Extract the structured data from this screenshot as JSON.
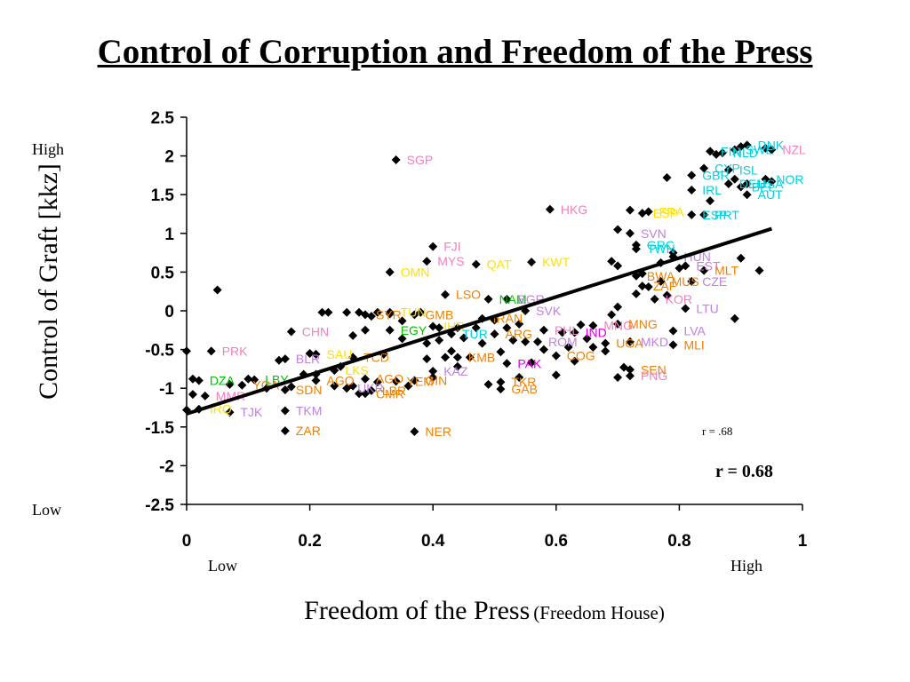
{
  "chart_data": {
    "type": "scatter",
    "title": "Control of Corruption and Freedom of the Press",
    "xlabel": "Freedom of the Press",
    "xlabel_sub": "(Freedom House)",
    "ylabel": "Control of Graft [kkz]",
    "x_low_label": "Low",
    "x_high_label": "High",
    "y_low_label": "Low",
    "y_high_label": "High",
    "xlim": [
      0,
      1
    ],
    "ylim": [
      -2.5,
      2.5
    ],
    "xticks": [
      "0",
      "0.2",
      "0.4",
      "0.6",
      "0.8",
      "1"
    ],
    "yticks": [
      "2.5",
      "2",
      "1.5",
      "1",
      "0.5",
      "0",
      "-0.5",
      "-1",
      "-1.5",
      "-2",
      "-2.5"
    ],
    "annotation": "r = 0.68",
    "annotation_small": "r =  .68",
    "trendline": {
      "x": [
        0.0,
        0.95
      ],
      "y": [
        -1.33,
        1.06
      ]
    },
    "points": [
      {
        "x": 0.34,
        "y": 1.95,
        "label": "SGP",
        "color": "#f080c0"
      },
      {
        "x": 0.59,
        "y": 1.31,
        "label": "HKG",
        "color": "#f080c0"
      },
      {
        "x": 0.4,
        "y": 0.83,
        "label": "FJI",
        "color": "#f080c0"
      },
      {
        "x": 0.39,
        "y": 0.64,
        "label": "MYS",
        "color": "#f080c0"
      },
      {
        "x": 0.33,
        "y": 0.5,
        "label": "OMN",
        "color": "#ffe000"
      },
      {
        "x": 0.47,
        "y": 0.6,
        "label": "QAT",
        "color": "#ffe000"
      },
      {
        "x": 0.56,
        "y": 0.63,
        "label": "KWT",
        "color": "#ffe000"
      },
      {
        "x": 0.42,
        "y": 0.21,
        "label": "LSO",
        "color": "#f08000"
      },
      {
        "x": 0.49,
        "y": 0.15,
        "label": "NAM",
        "color": "#00c000"
      },
      {
        "x": 0.52,
        "y": 0.15,
        "label": "BGR",
        "color": "#c080e0"
      },
      {
        "x": 0.55,
        "y": 0.0,
        "label": "SVK",
        "color": "#c080e0"
      },
      {
        "x": 0.17,
        "y": -0.27,
        "label": "CHN",
        "color": "#f080c0"
      },
      {
        "x": 0.33,
        "y": -0.25,
        "label": "EGY",
        "color": "#00c000"
      },
      {
        "x": 0.4,
        "y": -0.2,
        "label": "IHR",
        "color": "#ffe000"
      },
      {
        "x": 0.37,
        "y": -0.05,
        "label": "GMB",
        "color": "#f08000"
      },
      {
        "x": 0.33,
        "y": -0.02,
        "label": "TUN",
        "color": "#ffe000"
      },
      {
        "x": 0.29,
        "y": -0.05,
        "label": "SYR",
        "color": "#f08000"
      },
      {
        "x": 0.43,
        "y": -0.3,
        "label": "TUR",
        "color": "#00d0e0"
      },
      {
        "x": 0.48,
        "y": -0.1,
        "label": "IRAN",
        "color": "#f08000"
      },
      {
        "x": 0.5,
        "y": -0.3,
        "label": "ARG",
        "color": "#f08000"
      },
      {
        "x": 0.58,
        "y": -0.25,
        "label": "PHL",
        "color": "#f080c0"
      },
      {
        "x": 0.57,
        "y": -0.4,
        "label": "ROM",
        "color": "#c080e0"
      },
      {
        "x": 0.63,
        "y": -0.28,
        "label": "IND",
        "color": "#e000e0"
      },
      {
        "x": 0.66,
        "y": -0.19,
        "label": "MNG",
        "color": "#f080c0"
      },
      {
        "x": 0.7,
        "y": -0.17,
        "label": "MNG",
        "color": "#f08000"
      },
      {
        "x": 0.68,
        "y": -0.42,
        "label": "UGA",
        "color": "#f08000"
      },
      {
        "x": 0.72,
        "y": -0.4,
        "label": "MKD",
        "color": "#c080e0"
      },
      {
        "x": 0.79,
        "y": -0.44,
        "label": "MLI",
        "color": "#f08000"
      },
      {
        "x": 0.6,
        "y": -0.58,
        "label": "COG",
        "color": "#f08000"
      },
      {
        "x": 0.52,
        "y": -0.68,
        "label": "PAK",
        "color": "#e000e0"
      },
      {
        "x": 0.44,
        "y": -0.6,
        "label": "KMB",
        "color": "#f08000"
      },
      {
        "x": 0.04,
        "y": -0.52,
        "label": "PRK",
        "color": "#f080c0"
      },
      {
        "x": 0.16,
        "y": -0.62,
        "label": "BLR",
        "color": "#c080e0"
      },
      {
        "x": 0.21,
        "y": -0.56,
        "label": "SAU",
        "color": "#ffe000"
      },
      {
        "x": 0.27,
        "y": -0.6,
        "label": "TCD",
        "color": "#f08000"
      },
      {
        "x": 0.24,
        "y": -0.77,
        "label": "LKS",
        "color": "#ffe000"
      },
      {
        "x": 0.02,
        "y": -0.9,
        "label": "DZA",
        "color": "#00c000"
      },
      {
        "x": 0.11,
        "y": -0.89,
        "label": "LBY",
        "color": "#00c000"
      },
      {
        "x": 0.09,
        "y": -0.96,
        "label": "YGA",
        "color": "#f08000"
      },
      {
        "x": 0.21,
        "y": -0.9,
        "label": "AGO",
        "color": "#f08000"
      },
      {
        "x": 0.29,
        "y": -0.88,
        "label": "AGO",
        "color": "#f08000"
      },
      {
        "x": 0.34,
        "y": -0.91,
        "label": "YEM",
        "color": "#f08000"
      },
      {
        "x": 0.37,
        "y": -0.9,
        "label": "GIN",
        "color": "#f08000"
      },
      {
        "x": 0.4,
        "y": -0.78,
        "label": "KAZ",
        "color": "#c080e0"
      },
      {
        "x": 0.26,
        "y": -1.0,
        "label": "UKR",
        "color": "#c080e0"
      },
      {
        "x": 0.29,
        "y": -1.07,
        "label": "CMR",
        "color": "#f08000"
      },
      {
        "x": 0.3,
        "y": -1.03,
        "label": "LBR",
        "color": "#f08000"
      },
      {
        "x": 0.16,
        "y": -1.02,
        "label": "SDN",
        "color": "#f08000"
      },
      {
        "x": 0.03,
        "y": -1.1,
        "label": "MMR",
        "color": "#f080c0"
      },
      {
        "x": 0.02,
        "y": -1.27,
        "label": "IRQ",
        "color": "#ffe000"
      },
      {
        "x": 0.07,
        "y": -1.31,
        "label": "TJK",
        "color": "#c080e0"
      },
      {
        "x": 0.16,
        "y": -1.29,
        "label": "TKM",
        "color": "#c080e0"
      },
      {
        "x": 0.16,
        "y": -1.55,
        "label": "ZAR",
        "color": "#f08000"
      },
      {
        "x": 0.37,
        "y": -1.56,
        "label": "NER",
        "color": "#f08000"
      },
      {
        "x": 0.51,
        "y": -0.92,
        "label": "TKR",
        "color": "#f08000"
      },
      {
        "x": 0.51,
        "y": -1.01,
        "label": "GAB",
        "color": "#f08000"
      },
      {
        "x": 0.72,
        "y": -0.76,
        "label": "SEN",
        "color": "#f08000"
      },
      {
        "x": 0.72,
        "y": -0.84,
        "label": "PNG",
        "color": "#f080c0"
      },
      {
        "x": 0.72,
        "y": 1.0,
        "label": "SVN",
        "color": "#c080e0"
      },
      {
        "x": 0.73,
        "y": 0.85,
        "label": "GRC",
        "color": "#00d0e0"
      },
      {
        "x": 0.73,
        "y": 0.8,
        "label": "TWN",
        "color": "#00d0e0"
      },
      {
        "x": 0.79,
        "y": 0.7,
        "label": "HUN",
        "color": "#c080e0"
      },
      {
        "x": 0.81,
        "y": 0.58,
        "label": "EST",
        "color": "#c080e0"
      },
      {
        "x": 0.84,
        "y": 0.52,
        "label": "MLT",
        "color": "#f08000"
      },
      {
        "x": 0.73,
        "y": 0.45,
        "label": "BWA",
        "color": "#f08000"
      },
      {
        "x": 0.74,
        "y": 0.32,
        "label": "ZAF",
        "color": "#f08000"
      },
      {
        "x": 0.77,
        "y": 0.38,
        "label": "MUS",
        "color": "#f08000"
      },
      {
        "x": 0.82,
        "y": 0.38,
        "label": "CZE",
        "color": "#c080e0"
      },
      {
        "x": 0.76,
        "y": 0.15,
        "label": "KOR",
        "color": "#f080c0"
      },
      {
        "x": 0.81,
        "y": 0.03,
        "label": "LTU",
        "color": "#c080e0"
      },
      {
        "x": 0.79,
        "y": -0.26,
        "label": "LVA",
        "color": "#c080e0"
      },
      {
        "x": 0.74,
        "y": 1.26,
        "label": "ESP",
        "color": "#ffe000"
      },
      {
        "x": 0.75,
        "y": 1.28,
        "label": "FRA",
        "color": "#ffe000"
      },
      {
        "x": 0.82,
        "y": 1.24,
        "label": "ESP",
        "color": "#00d0e0"
      },
      {
        "x": 0.84,
        "y": 1.24,
        "label": "PRT",
        "color": "#00d0e0"
      },
      {
        "x": 0.82,
        "y": 1.56,
        "label": "IRL",
        "color": "#00d0e0"
      },
      {
        "x": 0.82,
        "y": 1.75,
        "label": "GBR",
        "color": "#00d0e0"
      },
      {
        "x": 0.84,
        "y": 1.84,
        "label": "CYP",
        "color": "#00d0e0"
      },
      {
        "x": 0.88,
        "y": 1.82,
        "label": "ISL",
        "color": "#00d0e0"
      },
      {
        "x": 0.88,
        "y": 1.64,
        "label": "DEU",
        "color": "#00d0e0"
      },
      {
        "x": 0.9,
        "y": 1.6,
        "label": "BEL",
        "color": "#00d0e0"
      },
      {
        "x": 0.91,
        "y": 1.64,
        "label": "USA",
        "color": "#00d0e0"
      },
      {
        "x": 0.91,
        "y": 1.5,
        "label": "AUT",
        "color": "#00d0e0"
      },
      {
        "x": 0.94,
        "y": 1.7,
        "label": "NOR",
        "color": "#00d0e0"
      },
      {
        "x": 0.85,
        "y": 2.06,
        "label": "FIN",
        "color": "#00d0e0"
      },
      {
        "x": 0.87,
        "y": 2.04,
        "label": "NLD",
        "color": "#00d0e0"
      },
      {
        "x": 0.89,
        "y": 2.08,
        "label": "SWE",
        "color": "#00d0e0"
      },
      {
        "x": 0.91,
        "y": 2.14,
        "label": "DNK",
        "color": "#00d0e0"
      },
      {
        "x": 0.95,
        "y": 2.08,
        "label": "NZL",
        "color": "#f080c0"
      }
    ],
    "extra_points": [
      {
        "x": 0.05,
        "y": 0.27
      },
      {
        "x": 0.0,
        "y": -0.52
      },
      {
        "x": 0.01,
        "y": -0.88
      },
      {
        "x": 0.01,
        "y": -1.08
      },
      {
        "x": 0.0,
        "y": -1.28
      },
      {
        "x": 0.07,
        "y": -0.95
      },
      {
        "x": 0.1,
        "y": -0.88
      },
      {
        "x": 0.13,
        "y": -1.0
      },
      {
        "x": 0.15,
        "y": -0.64
      },
      {
        "x": 0.17,
        "y": -0.98
      },
      {
        "x": 0.19,
        "y": -0.82
      },
      {
        "x": 0.2,
        "y": -0.55
      },
      {
        "x": 0.21,
        "y": -0.82
      },
      {
        "x": 0.22,
        "y": -0.02
      },
      {
        "x": 0.23,
        "y": -0.02
      },
      {
        "x": 0.24,
        "y": -0.97
      },
      {
        "x": 0.25,
        "y": -0.72
      },
      {
        "x": 0.26,
        "y": -0.02
      },
      {
        "x": 0.27,
        "y": -0.32
      },
      {
        "x": 0.27,
        "y": -0.97
      },
      {
        "x": 0.28,
        "y": -0.02
      },
      {
        "x": 0.28,
        "y": -1.07
      },
      {
        "x": 0.29,
        "y": -0.25
      },
      {
        "x": 0.3,
        "y": -0.07
      },
      {
        "x": 0.31,
        "y": -0.02
      },
      {
        "x": 0.31,
        "y": -0.92
      },
      {
        "x": 0.32,
        "y": -0.56
      },
      {
        "x": 0.33,
        "y": -0.04
      },
      {
        "x": 0.35,
        "y": -0.13
      },
      {
        "x": 0.35,
        "y": -0.36
      },
      {
        "x": 0.36,
        "y": -0.97
      },
      {
        "x": 0.38,
        "y": -0.02
      },
      {
        "x": 0.39,
        "y": -0.42
      },
      {
        "x": 0.39,
        "y": -0.62
      },
      {
        "x": 0.4,
        "y": -0.86
      },
      {
        "x": 0.41,
        "y": -0.22
      },
      {
        "x": 0.41,
        "y": -0.38
      },
      {
        "x": 0.42,
        "y": -0.6
      },
      {
        "x": 0.43,
        "y": -0.52
      },
      {
        "x": 0.44,
        "y": -0.22
      },
      {
        "x": 0.44,
        "y": -0.72
      },
      {
        "x": 0.45,
        "y": -0.35
      },
      {
        "x": 0.46,
        "y": -0.6
      },
      {
        "x": 0.47,
        "y": -0.22
      },
      {
        "x": 0.48,
        "y": -0.42
      },
      {
        "x": 0.49,
        "y": -0.95
      },
      {
        "x": 0.5,
        "y": -0.12
      },
      {
        "x": 0.51,
        "y": -0.53
      },
      {
        "x": 0.52,
        "y": -0.22
      },
      {
        "x": 0.53,
        "y": -0.38
      },
      {
        "x": 0.54,
        "y": -0.86
      },
      {
        "x": 0.54,
        "y": -0.17
      },
      {
        "x": 0.55,
        "y": -0.4
      },
      {
        "x": 0.56,
        "y": -0.67
      },
      {
        "x": 0.58,
        "y": -0.5
      },
      {
        "x": 0.6,
        "y": -0.83
      },
      {
        "x": 0.61,
        "y": -0.28
      },
      {
        "x": 0.62,
        "y": -0.47
      },
      {
        "x": 0.63,
        "y": -0.65
      },
      {
        "x": 0.64,
        "y": -0.18
      },
      {
        "x": 0.65,
        "y": -0.36
      },
      {
        "x": 0.66,
        "y": -0.47
      },
      {
        "x": 0.68,
        "y": -0.52
      },
      {
        "x": 0.69,
        "y": -0.05
      },
      {
        "x": 0.7,
        "y": 0.05
      },
      {
        "x": 0.7,
        "y": 0.58
      },
      {
        "x": 0.71,
        "y": -0.73
      },
      {
        "x": 0.7,
        "y": -0.86
      },
      {
        "x": 0.69,
        "y": 0.64
      },
      {
        "x": 0.7,
        "y": 1.05
      },
      {
        "x": 0.72,
        "y": 1.3
      },
      {
        "x": 0.73,
        "y": 0.22
      },
      {
        "x": 0.74,
        "y": 0.48
      },
      {
        "x": 0.75,
        "y": 0.31
      },
      {
        "x": 0.77,
        "y": 0.62
      },
      {
        "x": 0.78,
        "y": 1.72
      },
      {
        "x": 0.78,
        "y": 0.2
      },
      {
        "x": 0.79,
        "y": 0.75
      },
      {
        "x": 0.8,
        "y": 0.55
      },
      {
        "x": 0.85,
        "y": 1.42
      },
      {
        "x": 0.86,
        "y": 2.02
      },
      {
        "x": 0.89,
        "y": 1.7
      },
      {
        "x": 0.89,
        "y": -0.1
      },
      {
        "x": 0.9,
        "y": 2.12
      },
      {
        "x": 0.9,
        "y": 0.68
      },
      {
        "x": 0.93,
        "y": 0.52
      },
      {
        "x": 0.94,
        "y": 2.1
      },
      {
        "x": 0.95,
        "y": 1.67
      }
    ]
  }
}
